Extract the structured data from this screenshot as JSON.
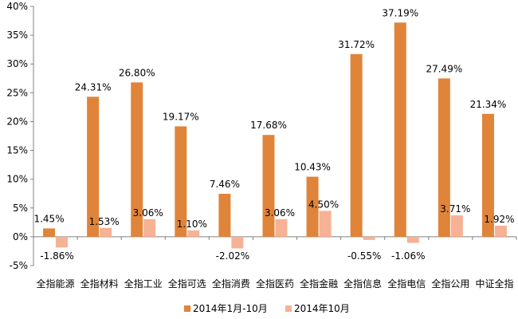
{
  "chart_data": {
    "type": "bar",
    "categories": [
      "全指能源",
      "全指材料",
      "全指工业",
      "全指可选",
      "全指消费",
      "全指医药",
      "全指金融",
      "全指信息",
      "全指电信",
      "全指公用",
      "中证全指"
    ],
    "series": [
      {
        "name": "2014年1月-10月",
        "color": "#E0843A",
        "values": [
          1.45,
          24.31,
          26.8,
          19.17,
          7.46,
          17.68,
          10.43,
          31.72,
          37.19,
          27.49,
          21.34
        ],
        "labels": [
          "1.45%",
          "24.31%",
          "26.80%",
          "19.17%",
          "7.46%",
          "17.68%",
          "10.43%",
          "31.72%",
          "37.19%",
          "27.49%",
          "21.34%"
        ]
      },
      {
        "name": "2014年10月",
        "color": "#F6B294",
        "values": [
          -1.86,
          1.53,
          3.06,
          1.1,
          -2.02,
          3.06,
          4.5,
          -0.55,
          -1.06,
          3.71,
          1.92
        ],
        "labels": [
          "-1.86%",
          "1.53%",
          "3.06%",
          "1.10%",
          "-2.02%",
          "3.06%",
          "4.50%",
          "-0.55%",
          "-1.06%",
          "3.71%",
          "1.92%"
        ]
      }
    ],
    "ylim": [
      -5,
      40
    ],
    "yticks": [
      -5,
      0,
      5,
      10,
      15,
      20,
      25,
      30,
      35,
      40
    ],
    "ytick_labels": [
      "-5%",
      "0%",
      "5%",
      "10%",
      "15%",
      "20%",
      "25%",
      "30%",
      "35%",
      "40%"
    ],
    "grid": false,
    "legend": "bottom"
  }
}
